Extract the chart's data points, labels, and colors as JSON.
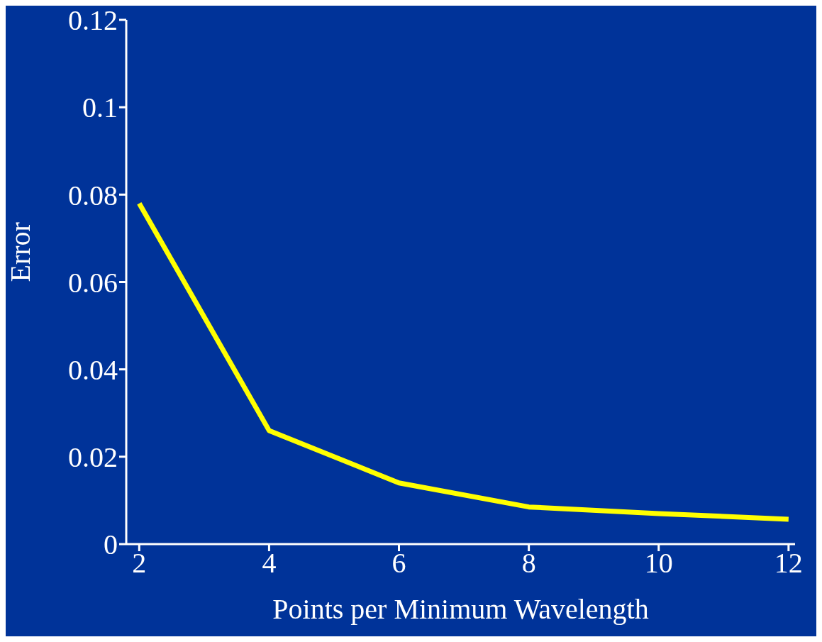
{
  "chart_data": {
    "type": "line",
    "xlabel": "Points per Minimum Wavelength",
    "ylabel": "Error",
    "x": [
      2,
      4,
      6,
      8,
      10,
      12
    ],
    "values": [
      0.078,
      0.026,
      0.014,
      0.0085,
      0.007,
      0.0057
    ],
    "color": "#ffff00",
    "xlim": [
      1.8,
      12.1
    ],
    "ylim": [
      0,
      0.12
    ],
    "xticks": [
      2,
      4,
      6,
      8,
      10,
      12
    ],
    "yticks": [
      0,
      0.02,
      0.04,
      0.06,
      0.08,
      0.1,
      0.12
    ]
  }
}
